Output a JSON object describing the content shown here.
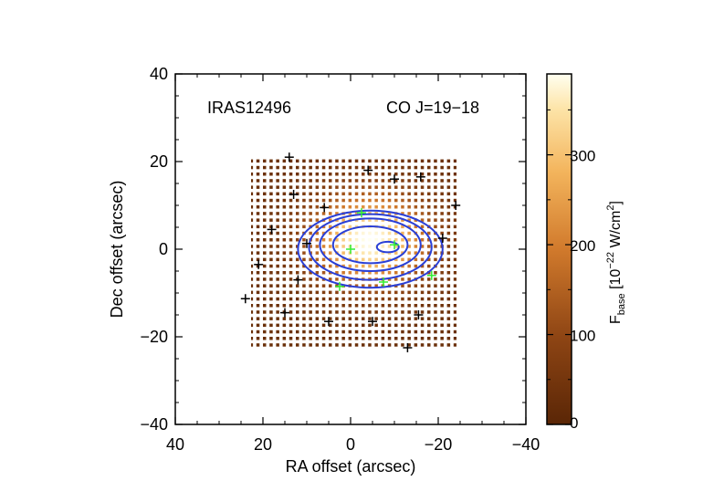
{
  "chart_data": {
    "type": "heatmap",
    "panel_labels": {
      "source": "IRAS12496",
      "line": "CO J=19−18"
    },
    "xlabel": "RA offset (arcsec)",
    "ylabel": "Dec offset (arcsec)",
    "xlim": [
      40,
      -40
    ],
    "ylim": [
      -40,
      40
    ],
    "xticks": [
      "40",
      "20",
      "0",
      "−20",
      "−40"
    ],
    "yticks": [
      "−40",
      "−20",
      "0",
      "20",
      "40"
    ],
    "colorbar": {
      "label_main": "F",
      "label_sub": "base",
      "label_rest": " [10",
      "label_exp": "−22",
      "label_unit": " W/cm",
      "label_unit_exp": "2",
      "label_close": "]",
      "range": [
        0,
        390
      ],
      "ticks": [
        "0",
        "100",
        "200",
        "300"
      ]
    },
    "map": {
      "ra_range": [
        23,
        -24
      ],
      "dec_range": [
        -23,
        21
      ],
      "peak_ra": -4,
      "peak_dec": 1,
      "peak_value": 390,
      "sigma_ra": 9,
      "sigma_dec": 7
    },
    "contours": [
      {
        "rx": 2.5,
        "ry": 1.2,
        "cx": -8.5,
        "cy": 0.5
      },
      {
        "rx": 8.5,
        "ry": 4.2,
        "cx": -4.5,
        "cy": 1
      },
      {
        "rx": 11.5,
        "ry": 6,
        "cx": -4.5,
        "cy": 1
      },
      {
        "rx": 14,
        "ry": 7.5,
        "cx": -4.5,
        "cy": 0.5
      },
      {
        "rx": 16.5,
        "ry": 8.8,
        "cx": -4.5,
        "cy": 0
      }
    ],
    "black_markers": [
      [
        14,
        21
      ],
      [
        13,
        12.5
      ],
      [
        -4,
        18
      ],
      [
        -10,
        16
      ],
      [
        -16,
        16.5
      ],
      [
        6,
        9.5
      ],
      [
        -24,
        10
      ],
      [
        18,
        4.5
      ],
      [
        10,
        1.3
      ],
      [
        -21,
        2.5
      ],
      [
        21,
        -3.5
      ],
      [
        12,
        -7
      ],
      [
        24,
        -11.3
      ],
      [
        15,
        -14.5
      ],
      [
        5,
        -16.5
      ],
      [
        -5,
        -16.5
      ],
      [
        -15.5,
        -15
      ],
      [
        -13,
        -22.5
      ]
    ],
    "green_markers": [
      [
        -2.5,
        8.3
      ],
      [
        0,
        0
      ],
      [
        -10,
        1
      ],
      [
        -7.5,
        -7.5
      ],
      [
        2.5,
        -8.5
      ],
      [
        -18.5,
        -6
      ]
    ]
  }
}
